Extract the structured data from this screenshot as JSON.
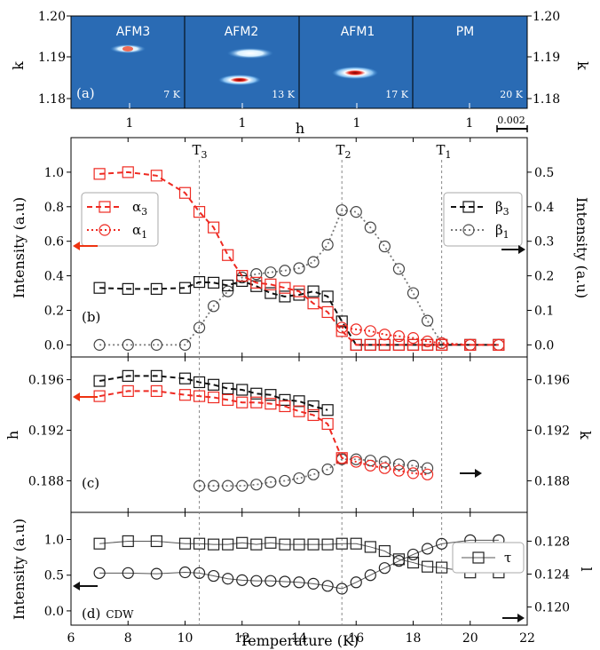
{
  "colors": {
    "alpha": "#ee2a22",
    "beta": "#111111",
    "gray_dotted": "#777777",
    "map_background": "#2a6bb4",
    "arrow_red": "#ee3311"
  },
  "chart_data": [
    {
      "type": "heatmap",
      "panel": "(a)",
      "xlabel": "h",
      "ylabel_left": "k",
      "ylabel_right": "k",
      "ylim": [
        1.178,
        1.2
      ],
      "yticks": [
        "1.20",
        "1.19",
        "1.18"
      ],
      "scalebar": "0.002",
      "maps": [
        {
          "label": "AFM3",
          "temp": "7 K",
          "x_tick": "1",
          "spots": [
            {
              "k": 1.1925,
              "intensity": 0.8
            }
          ]
        },
        {
          "label": "AFM2",
          "temp": "13 K",
          "x_tick": "1",
          "spots": [
            {
              "k": 1.1925,
              "intensity": 0.8
            },
            {
              "k": 1.1845,
              "intensity": 0.9
            }
          ]
        },
        {
          "label": "AFM1",
          "temp": "17 K",
          "x_tick": "1",
          "spots": [
            {
              "k": 1.186,
              "intensity": 1.0
            }
          ]
        },
        {
          "label": "PM",
          "temp": "20 K",
          "x_tick": "1",
          "spots": []
        }
      ]
    },
    {
      "type": "line",
      "panel": "(b)",
      "xlim": [
        6,
        22
      ],
      "ylim_left": [
        -0.07,
        1.2
      ],
      "ylim_right": [
        -0.035,
        0.6
      ],
      "ylabel_left": "Intensity (a.u)",
      "ylabel_right": "Intensity (a.u)",
      "yticks_left": [
        "0.0",
        "0.2",
        "0.4",
        "0.6",
        "0.8",
        "1.0"
      ],
      "yticks_right": [
        "0.0",
        "0.1",
        "0.2",
        "0.3",
        "0.4",
        "0.5"
      ],
      "transition_lines": [
        {
          "label": "T",
          "sub": "3",
          "x": 10.5
        },
        {
          "label": "T",
          "sub": "2",
          "x": 15.5
        },
        {
          "label": "T",
          "sub": "1",
          "x": 19
        }
      ],
      "legend_left": [
        {
          "name": "α",
          "sub": "3"
        },
        {
          "name": "α",
          "sub": "1"
        }
      ],
      "legend_right": [
        {
          "name": "β",
          "sub": "3"
        },
        {
          "name": "β",
          "sub": "1"
        }
      ],
      "series": [
        {
          "name": "α3",
          "axis": "left",
          "x": [
            7,
            8,
            9,
            10,
            10.5,
            11,
            11.5,
            12,
            12.5,
            13,
            13.5,
            14,
            14.5,
            15,
            15.5,
            16,
            16.5,
            17,
            17.5,
            18,
            18.5,
            19,
            20,
            21
          ],
          "values": [
            0.99,
            1.0,
            0.98,
            0.88,
            0.77,
            0.68,
            0.52,
            0.4,
            0.36,
            0.35,
            0.33,
            0.31,
            0.24,
            0.19,
            0.08,
            0.0,
            0.0,
            0.0,
            0.0,
            0.0,
            0.0,
            0.0,
            0.0,
            0.0
          ]
        },
        {
          "name": "α1",
          "axis": "left",
          "x": [
            15.5,
            16,
            16.5,
            17,
            17.5,
            18,
            18.5,
            19,
            20,
            21
          ],
          "values": [
            0.1,
            0.09,
            0.08,
            0.06,
            0.05,
            0.04,
            0.02,
            0.01,
            0.0,
            0.0
          ]
        },
        {
          "name": "β3",
          "axis": "right",
          "x": [
            7,
            8,
            9,
            10,
            10.5,
            11,
            11.5,
            12,
            12.5,
            13,
            13.5,
            14,
            14.5,
            15,
            15.5,
            16,
            16.5,
            17,
            17.5,
            18,
            18.5,
            19,
            20,
            21
          ],
          "values": [
            0.165,
            0.162,
            0.162,
            0.165,
            0.182,
            0.18,
            0.172,
            0.185,
            0.17,
            0.15,
            0.14,
            0.145,
            0.155,
            0.14,
            0.068,
            0.0,
            0.0,
            0.0,
            0.0,
            0.0,
            0.0,
            0.0,
            0.0,
            0.0
          ]
        },
        {
          "name": "β1",
          "axis": "right",
          "x": [
            7,
            8,
            9,
            10,
            10.5,
            11,
            11.5,
            12,
            12.5,
            13,
            13.5,
            14,
            14.5,
            15,
            15.5,
            16,
            16.5,
            17,
            17.5,
            18,
            18.5,
            19,
            20,
            21
          ],
          "values": [
            0.0,
            0.0,
            0.0,
            0.0,
            0.05,
            0.112,
            0.155,
            0.195,
            0.205,
            0.21,
            0.215,
            0.222,
            0.24,
            0.29,
            0.39,
            0.385,
            0.34,
            0.285,
            0.22,
            0.15,
            0.07,
            0.005,
            0.0,
            0.0
          ]
        }
      ]
    },
    {
      "type": "line",
      "panel": "(c)",
      "xlim": [
        6,
        22
      ],
      "ylim_left": [
        0.1855,
        0.1978
      ],
      "ylim_right": [
        0.1855,
        0.1978
      ],
      "ylabel_left": "h",
      "ylabel_right": "k",
      "yticks_left": [
        "0.188",
        "0.192",
        "0.196"
      ],
      "yticks_right": [
        "0.188",
        "0.192",
        "0.196"
      ],
      "series": [
        {
          "name": "β3 h",
          "axis": "left",
          "x": [
            7,
            8,
            9,
            10,
            10.5,
            11,
            11.5,
            12,
            12.5,
            13,
            13.5,
            14,
            14.5,
            15
          ],
          "values": [
            0.1959,
            0.1963,
            0.1963,
            0.1961,
            0.1958,
            0.1956,
            0.1953,
            0.1952,
            0.1949,
            0.1948,
            0.1944,
            0.1943,
            0.1939,
            0.1936
          ]
        },
        {
          "name": "α3 h",
          "axis": "left",
          "x": [
            7,
            8,
            9,
            10,
            10.5,
            11,
            11.5,
            12,
            12.5,
            13,
            13.5,
            14,
            14.5,
            15,
            15.5
          ],
          "values": [
            0.1947,
            0.1951,
            0.1951,
            0.1948,
            0.1947,
            0.1946,
            0.1944,
            0.1942,
            0.1942,
            0.1941,
            0.1939,
            0.1935,
            0.1932,
            0.1925,
            0.1898
          ]
        },
        {
          "name": "α1 h",
          "axis": "left",
          "x": [
            15.5,
            16,
            16.5,
            17,
            17.5,
            18,
            18.5
          ],
          "values": [
            0.1898,
            0.1895,
            0.1892,
            0.189,
            0.1888,
            0.1886,
            0.1885
          ]
        },
        {
          "name": "β1 k",
          "axis": "right",
          "x": [
            10.5,
            11,
            11.5,
            12,
            12.5,
            13,
            13.5,
            14,
            14.5,
            15,
            15.5,
            16,
            16.5,
            17,
            17.5,
            18,
            18.5
          ],
          "values": [
            0.1876,
            0.1876,
            0.1876,
            0.1876,
            0.1877,
            0.1879,
            0.188,
            0.1882,
            0.1885,
            0.1889,
            0.1897,
            0.1897,
            0.1896,
            0.1895,
            0.1893,
            0.1892,
            0.189
          ]
        }
      ]
    },
    {
      "type": "line",
      "panel": "(d)",
      "annotation": "CDW",
      "xlim": [
        6,
        22
      ],
      "xlabel": "Temperature (K)",
      "xticks": [
        "6",
        "8",
        "10",
        "12",
        "14",
        "16",
        "18",
        "20",
        "22"
      ],
      "ylim_left": [
        -0.2,
        1.38
      ],
      "ylim_right": [
        0.1178,
        0.1315
      ],
      "ylabel_left": "Intensity (a.u)",
      "ylabel_right": "l",
      "yticks_left": [
        "0.0",
        "0.5",
        "1.0"
      ],
      "yticks_right": [
        "0.120",
        "0.124",
        "0.128"
      ],
      "legend": [
        {
          "name": "τ"
        }
      ],
      "series": [
        {
          "name": "τ",
          "axis": "right",
          "x": [
            7,
            8,
            9,
            10,
            10.5,
            11,
            11.5,
            12,
            12.5,
            13,
            13.5,
            14,
            14.5,
            15,
            15.5,
            16,
            16.5,
            17,
            17.5,
            18,
            18.5,
            19,
            20,
            21
          ],
          "values": [
            0.1277,
            0.128,
            0.128,
            0.1277,
            0.1277,
            0.1276,
            0.1276,
            0.1278,
            0.1276,
            0.1278,
            0.1276,
            0.1276,
            0.1276,
            0.1276,
            0.1277,
            0.1277,
            0.1273,
            0.1268,
            0.1258,
            0.1254,
            0.1249,
            0.1248,
            0.1242,
            0.1242
          ]
        },
        {
          "name": "intensity",
          "axis": "left",
          "x": [
            7,
            8,
            9,
            10,
            10.5,
            11,
            11.5,
            12,
            12.5,
            13,
            13.5,
            14,
            14.5,
            15,
            15.5,
            16,
            16.5,
            17,
            17.5,
            18,
            18.5,
            19,
            20,
            21
          ],
          "values": [
            0.53,
            0.53,
            0.52,
            0.54,
            0.53,
            0.49,
            0.45,
            0.43,
            0.42,
            0.42,
            0.41,
            0.4,
            0.38,
            0.35,
            0.31,
            0.4,
            0.5,
            0.6,
            0.7,
            0.79,
            0.87,
            0.94,
            0.99,
            0.99
          ]
        }
      ]
    }
  ]
}
